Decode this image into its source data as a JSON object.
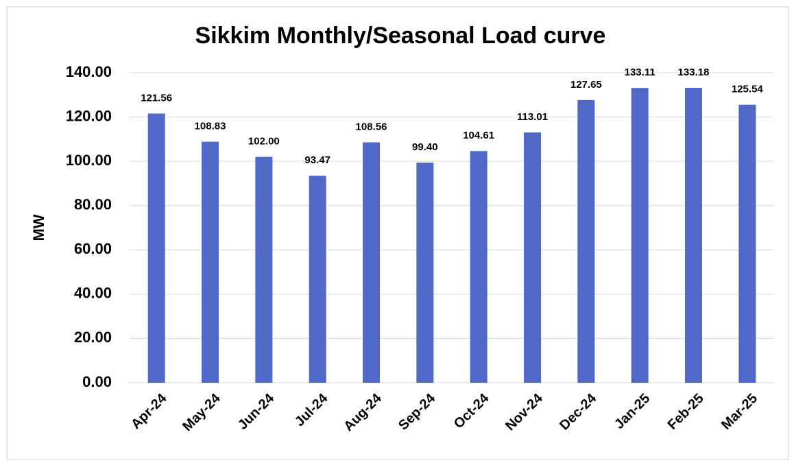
{
  "chart_data": {
    "type": "bar",
    "title": "Sikkim Monthly/Seasonal Load curve",
    "y_label": "MW",
    "categories": [
      "Apr-24",
      "May-24",
      "Jun-24",
      "Jul-24",
      "Aug-24",
      "Sep-24",
      "Oct-24",
      "Nov-24",
      "Dec-24",
      "Jan-25",
      "Feb-25",
      "Mar-25"
    ],
    "values": [
      121.56,
      108.83,
      102,
      93.47,
      108.56,
      99.4,
      104.61,
      113.01,
      127.65,
      133.11,
      133.18,
      125.54
    ],
    "value_labels": [
      "121.56",
      "108.83",
      "102.00",
      "93.47",
      "108.56",
      "99.40",
      "104.61",
      "113.01",
      "127.65",
      "133.11",
      "133.18",
      "125.54"
    ],
    "color": "#5068c8",
    "ylim": [
      0,
      140
    ],
    "yticks": [
      {
        "value": 0,
        "label": "0.00"
      },
      {
        "value": 20,
        "label": "20.00"
      },
      {
        "value": 40,
        "label": "40.00"
      },
      {
        "value": 60,
        "label": "60.00"
      },
      {
        "value": 80,
        "label": "80.00"
      },
      {
        "value": 100,
        "label": "100.00"
      },
      {
        "value": 120,
        "label": "120.00"
      },
      {
        "value": 140,
        "label": "140.00"
      }
    ],
    "grid": true
  }
}
